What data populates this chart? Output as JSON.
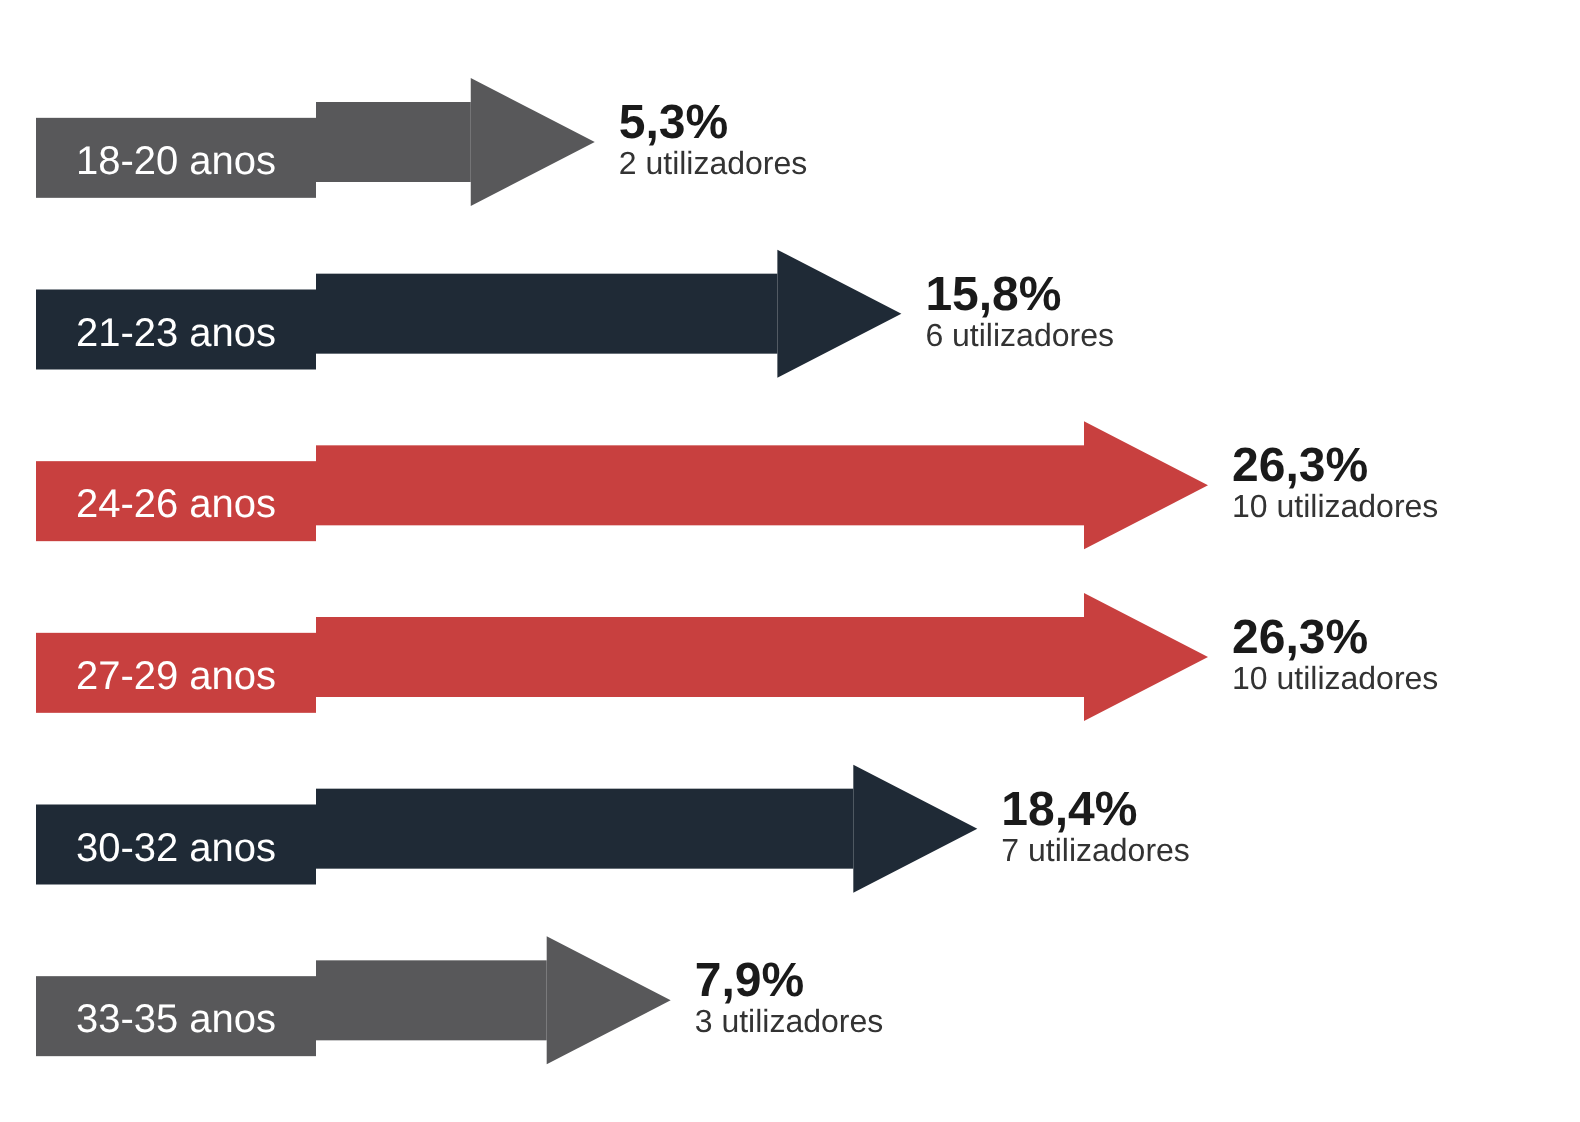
{
  "chart_data": {
    "type": "bar",
    "orientation": "horizontal",
    "categories": [
      "18-20 anos",
      "21-23 anos",
      "24-26 anos",
      "27-29 anos",
      "30-32 anos",
      "33-35 anos"
    ],
    "values": [
      5.3,
      15.8,
      26.3,
      26.3,
      18.4,
      7.9
    ],
    "colors": [
      "#58585a",
      "#1f2a36",
      "#c8403f",
      "#c8403f",
      "#1f2a36",
      "#58585a"
    ],
    "value_labels": [
      "5,3%",
      "15,8%",
      "26,3%",
      "26,3%",
      "18,4%",
      "7,9%"
    ],
    "annotations": [
      "2 utilizadores",
      "6 utilizadores",
      "10 utilizadores",
      "10 utilizadores",
      "7 utilizadores",
      "3 utilizadores"
    ]
  }
}
